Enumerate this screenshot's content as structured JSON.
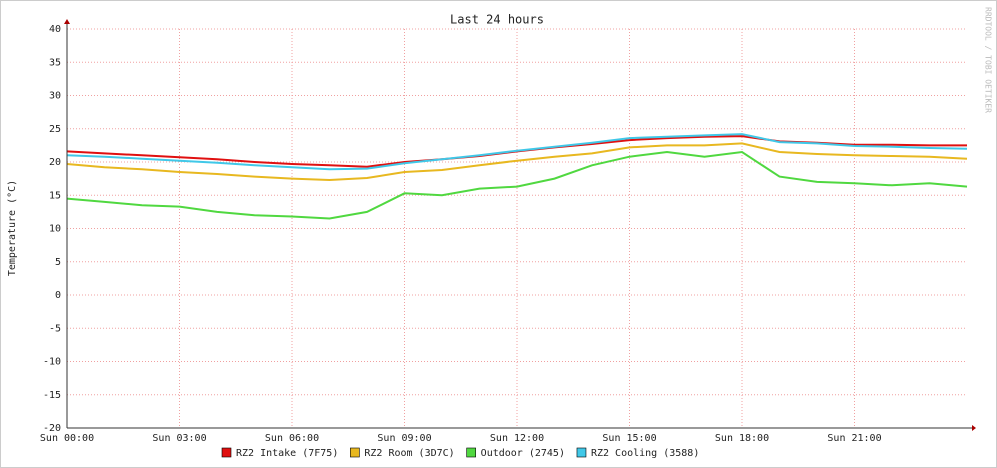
{
  "chart_data": {
    "type": "line",
    "title": "Last 24 hours",
    "y_label": "Temperature (°C)",
    "watermark": "RRDTOOL / TOBI OETIKER",
    "x": [
      0,
      1,
      2,
      3,
      4,
      5,
      6,
      7,
      8,
      9,
      10,
      11,
      12,
      13,
      14,
      15,
      16,
      17,
      18,
      19,
      20,
      21,
      22,
      23,
      24
    ],
    "xlim": [
      0,
      24
    ],
    "xticks": [
      {
        "value": 0,
        "label": "Sun 00:00"
      },
      {
        "value": 3,
        "label": "Sun 03:00"
      },
      {
        "value": 6,
        "label": "Sun 06:00"
      },
      {
        "value": 9,
        "label": "Sun 09:00"
      },
      {
        "value": 12,
        "label": "Sun 12:00"
      },
      {
        "value": 15,
        "label": "Sun 15:00"
      },
      {
        "value": 18,
        "label": "Sun 18:00"
      },
      {
        "value": 21,
        "label": "Sun 21:00"
      }
    ],
    "ylim": [
      -20,
      40
    ],
    "yticks": [
      -20,
      -15,
      -10,
      -5,
      0,
      5,
      10,
      15,
      20,
      25,
      30,
      35,
      40
    ],
    "grid": true,
    "series": [
      {
        "name": "RZ2 Intake (7F75)",
        "color": "#e01010",
        "values": [
          21.6,
          21.3,
          21.0,
          20.7,
          20.4,
          20.0,
          19.7,
          19.5,
          19.3,
          20.0,
          20.4,
          20.9,
          21.6,
          22.2,
          22.7,
          23.3,
          23.6,
          23.8,
          23.9,
          23.1,
          22.9,
          22.6,
          22.6,
          22.5,
          22.5
        ]
      },
      {
        "name": "RZ2 Room (3D7C)",
        "color": "#e8b820",
        "values": [
          19.7,
          19.2,
          18.9,
          18.5,
          18.2,
          17.8,
          17.5,
          17.3,
          17.6,
          18.5,
          18.8,
          19.5,
          20.2,
          20.8,
          21.3,
          22.2,
          22.5,
          22.5,
          22.8,
          21.5,
          21.2,
          21.0,
          20.9,
          20.8,
          20.5
        ]
      },
      {
        "name": "Outdoor (2745)",
        "color": "#50d840",
        "values": [
          14.5,
          14.0,
          13.5,
          13.3,
          12.5,
          12.0,
          11.8,
          11.5,
          12.5,
          15.3,
          15.0,
          16.0,
          16.3,
          17.5,
          19.5,
          20.8,
          21.5,
          20.8,
          21.5,
          17.8,
          17.0,
          16.8,
          16.5,
          16.8,
          16.3
        ]
      },
      {
        "name": "RZ2 Cooling (3588)",
        "color": "#40c8e8",
        "values": [
          21.0,
          20.8,
          20.5,
          20.2,
          19.9,
          19.5,
          19.2,
          18.9,
          19.0,
          19.8,
          20.4,
          21.0,
          21.7,
          22.3,
          22.9,
          23.6,
          23.8,
          24.0,
          24.2,
          23.0,
          22.8,
          22.4,
          22.3,
          22.1,
          22.0
        ]
      }
    ]
  }
}
